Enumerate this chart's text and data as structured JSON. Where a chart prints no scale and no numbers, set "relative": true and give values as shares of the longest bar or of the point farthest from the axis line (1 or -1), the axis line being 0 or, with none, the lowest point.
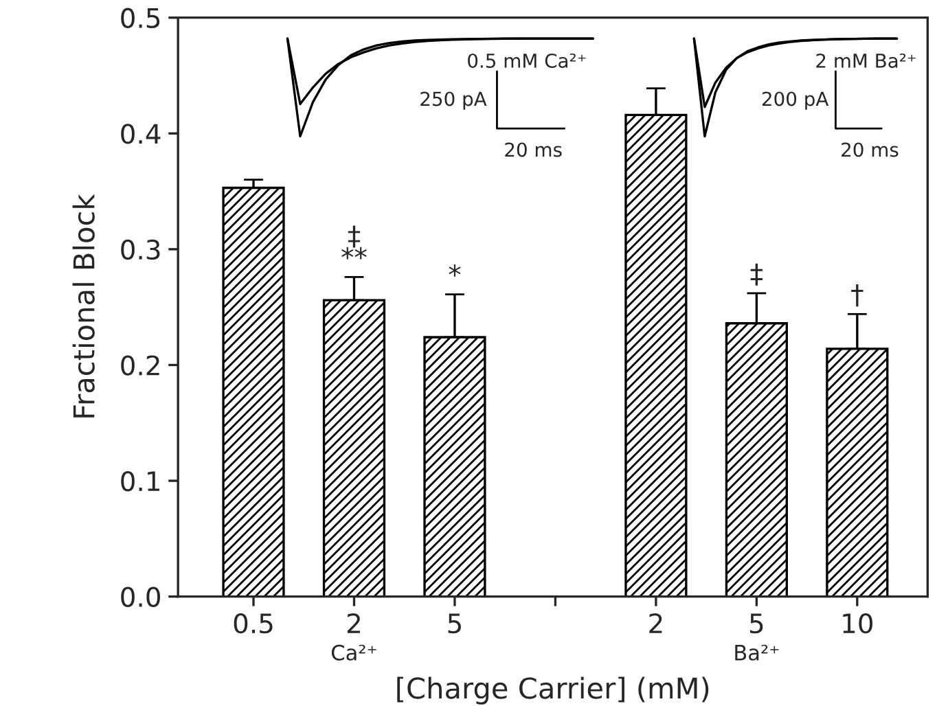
{
  "chart_data": [
    {
      "type": "bar",
      "xlabel": "[Charge Carrier] (mM)",
      "ylabel": "Fractional Block",
      "categories": [
        "0.5",
        "2",
        "5",
        null,
        "2",
        "5",
        "10"
      ],
      "values": [
        0.353,
        0.256,
        0.224,
        null,
        0.416,
        0.236,
        0.214
      ],
      "errors": [
        0.007,
        0.02,
        0.037,
        null,
        0.023,
        0.026,
        0.03
      ],
      "value_labels": [
        null,
        "‡\n**",
        "*",
        null,
        null,
        "‡",
        "†"
      ],
      "color": "#000000",
      "ylim": [
        0,
        0.5
      ],
      "yticks": [
        {
          "value": 0,
          "label": "0.0"
        },
        {
          "value": 0.1,
          "label": "0.1"
        },
        {
          "value": 0.2,
          "label": "0.2"
        },
        {
          "value": 0.3,
          "label": "0.3"
        },
        {
          "value": 0.4,
          "label": "0.4"
        },
        {
          "value": 0.5,
          "label": "0.5"
        }
      ],
      "annotations": [
        "Ca²⁺",
        "Ba²⁺"
      ]
    },
    {
      "type": "line",
      "relative": true,
      "tick_labels": false,
      "categories": [
        null,
        null,
        null,
        null,
        null,
        null,
        null,
        null,
        null,
        null,
        null,
        null,
        null,
        null,
        null,
        null,
        null,
        null,
        null,
        null,
        null,
        null,
        null,
        null,
        null
      ],
      "series": [
        {
          "color": "#000000",
          "values": [
            1,
            0,
            0.35,
            0.58,
            0.73,
            0.83,
            0.89,
            0.93,
            0.955,
            0.97,
            0.98,
            0.985,
            0.99,
            0.993,
            0.995,
            0.997,
            0.998,
            0.999,
            1,
            1,
            1,
            1,
            1,
            1,
            1
          ]
        },
        {
          "color": "#000000",
          "values": [
            1,
            0.33,
            0.5,
            0.64,
            0.74,
            0.81,
            0.86,
            0.9,
            0.93,
            0.95,
            0.965,
            0.975,
            0.983,
            0.988,
            0.992,
            0.995,
            0.997,
            0.998,
            0.999,
            1,
            1,
            1,
            1,
            1,
            1
          ]
        }
      ],
      "annotations": [
        "0.5 mM Ca²⁺",
        "250 pA",
        "20 ms"
      ]
    },
    {
      "type": "line",
      "relative": true,
      "tick_labels": false,
      "categories": [
        null,
        null,
        null,
        null,
        null,
        null,
        null,
        null,
        null,
        null,
        null,
        null,
        null,
        null,
        null,
        null,
        null,
        null,
        null,
        null
      ],
      "series": [
        {
          "color": "#000000",
          "values": [
            1,
            0,
            0.45,
            0.68,
            0.8,
            0.87,
            0.91,
            0.94,
            0.96,
            0.97,
            0.98,
            0.985,
            0.99,
            0.993,
            0.995,
            0.997,
            0.998,
            1,
            1,
            1
          ]
        },
        {
          "color": "#000000",
          "values": [
            1,
            0.3,
            0.55,
            0.7,
            0.8,
            0.86,
            0.9,
            0.93,
            0.95,
            0.965,
            0.975,
            0.983,
            0.988,
            0.992,
            0.995,
            0.997,
            0.998,
            0.999,
            1,
            1
          ]
        }
      ],
      "annotations": [
        "2 mM Ba²⁺",
        "200 pA",
        "20 ms"
      ]
    }
  ]
}
